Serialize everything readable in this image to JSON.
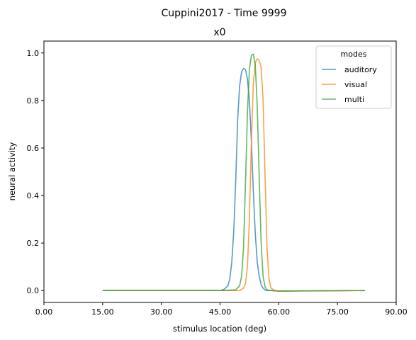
{
  "figure_title": "Cuppini2017 - Time 9999",
  "chart_data": {
    "type": "line",
    "title": "x0",
    "xlabel": "stimulus location (deg)",
    "ylabel": "neural activity",
    "xlim": [
      0,
      90
    ],
    "ylim": [
      -0.05,
      1.05
    ],
    "xticks": [
      0,
      15,
      30,
      45,
      60,
      75,
      90
    ],
    "xtick_labels": [
      "0.00",
      "15.00",
      "30.00",
      "45.00",
      "60.00",
      "75.00",
      "90.00"
    ],
    "yticks": [
      0,
      0.2,
      0.4,
      0.6,
      0.8,
      1.0
    ],
    "ytick_labels": [
      "0.0",
      "0.2",
      "0.4",
      "0.6",
      "0.8",
      "1.0"
    ],
    "grid": false,
    "legend": {
      "title": "modes",
      "position": "top-right"
    },
    "series": [
      {
        "name": "auditory",
        "color": "#1f77b4",
        "x": [
          15,
          45,
          46,
          47,
          47.5,
          48,
          48.5,
          49,
          49.5,
          50,
          50.5,
          51,
          51.5,
          52,
          52.5,
          53,
          53.5,
          54,
          54.5,
          55,
          55.5,
          56,
          56.5,
          57,
          58,
          60,
          82
        ],
        "y": [
          0.0,
          0.0,
          0.005,
          0.02,
          0.05,
          0.12,
          0.25,
          0.46,
          0.72,
          0.86,
          0.92,
          0.935,
          0.93,
          0.89,
          0.8,
          0.63,
          0.42,
          0.24,
          0.12,
          0.06,
          0.025,
          0.01,
          0.003,
          0.0,
          0.0,
          -0.002,
          0.0
        ]
      },
      {
        "name": "visual",
        "color": "#ff7f0e",
        "x": [
          15,
          45,
          50,
          51,
          51.5,
          52,
          52.5,
          53,
          53.5,
          54,
          54.5,
          55,
          55.5,
          56,
          56.5,
          57,
          57.5,
          58,
          59,
          60,
          82
        ],
        "y": [
          0.0,
          0.0,
          0.0,
          0.01,
          0.03,
          0.1,
          0.3,
          0.62,
          0.87,
          0.96,
          0.975,
          0.97,
          0.94,
          0.8,
          0.48,
          0.18,
          0.05,
          0.01,
          0.0,
          -0.002,
          0.0
        ]
      },
      {
        "name": "multi",
        "color": "#2ca02c",
        "x": [
          15,
          45,
          49,
          50,
          50.5,
          51,
          51.5,
          52,
          52.5,
          53,
          53.5,
          54,
          54.5,
          55,
          55.5,
          56,
          56.5,
          57,
          58,
          60,
          82
        ],
        "y": [
          0.0,
          0.0,
          0.003,
          0.02,
          0.06,
          0.18,
          0.45,
          0.75,
          0.93,
          0.99,
          0.995,
          0.95,
          0.78,
          0.48,
          0.2,
          0.06,
          0.015,
          0.003,
          0.0,
          -0.002,
          0.0
        ]
      }
    ]
  }
}
